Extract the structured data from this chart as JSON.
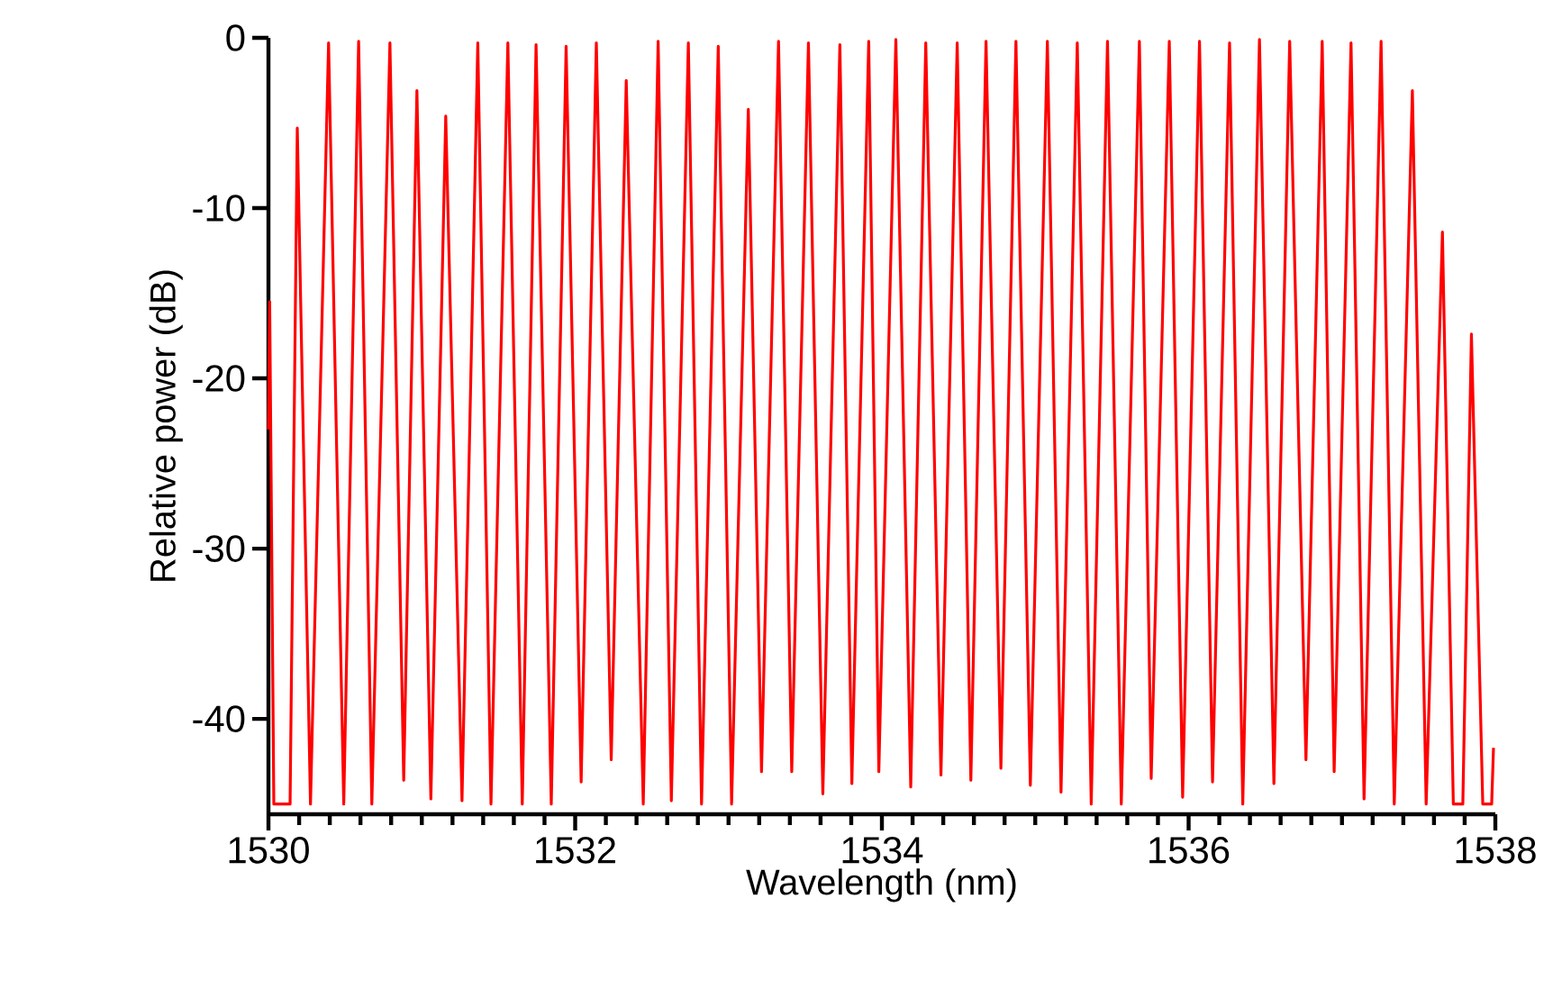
{
  "chart_data": {
    "type": "line",
    "xlabel": "Wavelength  (nm)",
    "ylabel": "Relative power (dB)",
    "xlim": [
      1530,
      1538
    ],
    "ylim": [
      -45.6,
      0
    ],
    "xticks": [
      1530,
      {
        "value": 1530.2,
        "label": null
      },
      {
        "value": 1530.4,
        "label": null
      },
      {
        "value": 1530.6,
        "label": null
      },
      {
        "value": 1530.8,
        "label": null
      },
      {
        "value": 1531,
        "label": null
      },
      {
        "value": 1531.2,
        "label": null
      },
      {
        "value": 1531.4,
        "label": null
      },
      {
        "value": 1531.6,
        "label": null
      },
      {
        "value": 1531.8,
        "label": null
      },
      1532,
      {
        "value": 1532.2,
        "label": null
      },
      {
        "value": 1532.4,
        "label": null
      },
      {
        "value": 1532.6,
        "label": null
      },
      {
        "value": 1532.8,
        "label": null
      },
      {
        "value": 1533,
        "label": null
      },
      {
        "value": 1533.2,
        "label": null
      },
      {
        "value": 1533.4,
        "label": null
      },
      {
        "value": 1533.6,
        "label": null
      },
      {
        "value": 1533.8,
        "label": null
      },
      1534,
      {
        "value": 1534.2,
        "label": null
      },
      {
        "value": 1534.4,
        "label": null
      },
      {
        "value": 1534.6,
        "label": null
      },
      {
        "value": 1534.8,
        "label": null
      },
      {
        "value": 1535,
        "label": null
      },
      {
        "value": 1535.2,
        "label": null
      },
      {
        "value": 1535.4,
        "label": null
      },
      {
        "value": 1535.6,
        "label": null
      },
      {
        "value": 1535.8,
        "label": null
      },
      1536,
      {
        "value": 1536.2,
        "label": null
      },
      {
        "value": 1536.4,
        "label": null
      },
      {
        "value": 1536.6,
        "label": null
      },
      {
        "value": 1536.8,
        "label": null
      },
      {
        "value": 1537,
        "label": null
      },
      {
        "value": 1537.2,
        "label": null
      },
      {
        "value": 1537.4,
        "label": null
      },
      {
        "value": 1537.6,
        "label": null
      },
      {
        "value": 1537.8,
        "label": null
      },
      1538
    ],
    "yticks": [
      0,
      -10,
      -20,
      -30,
      -40
    ],
    "marker": "none",
    "line_style": "solid",
    "series": [
      {
        "color": "#ff0000",
        "x": [
          1530.0,
          1530.008,
          1530.035,
          1530.141,
          1530.188,
          1530.274,
          1530.392,
          1530.491,
          1530.588,
          1530.674,
          1530.792,
          1530.882,
          1530.968,
          1531.059,
          1531.156,
          1531.262,
          1531.365,
          1531.451,
          1531.561,
          1531.655,
          1531.745,
          1531.844,
          1531.941,
          1532.039,
          1532.138,
          1532.235,
          1532.333,
          1532.444,
          1532.541,
          1532.627,
          1532.738,
          1532.824,
          1532.933,
          1533.02,
          1533.129,
          1533.215,
          1533.326,
          1533.412,
          1533.521,
          1533.615,
          1533.726,
          1533.804,
          1533.914,
          1533.98,
          1534.091,
          1534.188,
          1534.286,
          1534.385,
          1534.491,
          1534.58,
          1534.679,
          1534.776,
          1534.874,
          1534.968,
          1535.079,
          1535.168,
          1535.274,
          1535.365,
          1535.471,
          1535.561,
          1535.679,
          1535.756,
          1535.874,
          1535.961,
          1536.071,
          1536.156,
          1536.267,
          1536.353,
          1536.462,
          1536.556,
          1536.659,
          1536.765,
          1536.871,
          1536.949,
          1537.059,
          1537.144,
          1537.255,
          1537.341,
          1537.459,
          1537.549,
          1537.655,
          1537.726,
          1537.788,
          1537.844,
          1537.918,
          1537.976,
          1537.988
        ],
        "values": [
          -23,
          -15.5,
          -45,
          -45,
          -5.3,
          -45,
          -0.3,
          -45,
          -0.2,
          -45,
          -0.3,
          -43.6,
          -3.1,
          -44.7,
          -4.6,
          -44.8,
          -0.3,
          -45,
          -0.3,
          -45,
          -0.4,
          -45,
          -0.5,
          -43.7,
          -0.3,
          -42.4,
          -2.5,
          -45,
          -0.2,
          -44.8,
          -0.3,
          -45,
          -0.5,
          -45,
          -4.2,
          -43.1,
          -0.2,
          -43.1,
          -0.3,
          -44.4,
          -0.4,
          -43.8,
          -0.2,
          -43.1,
          -0.1,
          -44,
          -0.3,
          -43.3,
          -0.3,
          -43.6,
          -0.2,
          -42.9,
          -0.2,
          -43.9,
          -0.2,
          -44.3,
          -0.3,
          -45,
          -0.2,
          -45,
          -0.2,
          -43.5,
          -0.2,
          -44.6,
          -0.2,
          -43.7,
          -0.3,
          -45,
          -0.1,
          -43.8,
          -0.2,
          -42.4,
          -0.2,
          -43.1,
          -0.3,
          -44.7,
          -0.2,
          -45,
          -3.1,
          -45,
          -11.4,
          -45,
          -45,
          -17.4,
          -45,
          -45,
          -41.7
        ]
      }
    ]
  }
}
